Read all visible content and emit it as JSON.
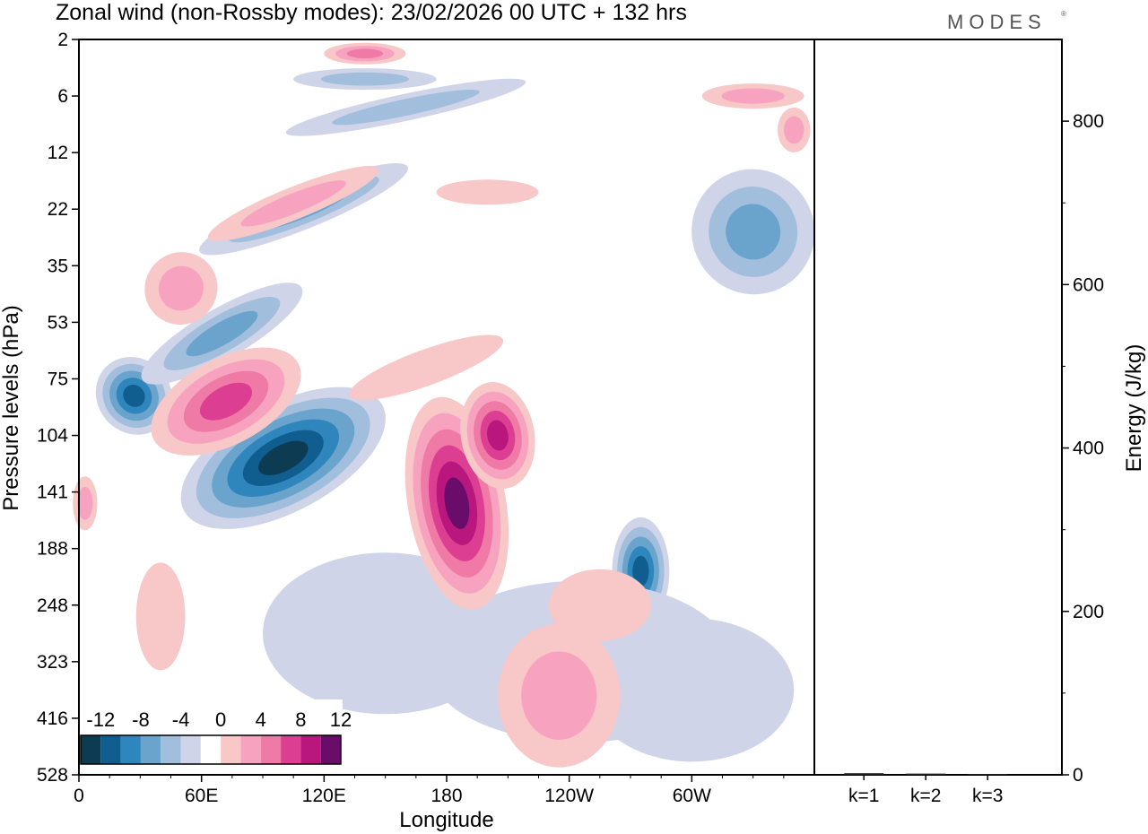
{
  "title": "Zonal wind (non-Rossby modes):  23/02/2026  00 UTC  + 132 hrs",
  "logo": "MODES",
  "chart_data": [
    {
      "type": "heatmap",
      "title": "Zonal wind (non-Rossby modes):  23/02/2026  00 UTC  + 132 hrs",
      "xlabel": "Longitude",
      "ylabel": "Pressure levels (hPa)",
      "x_ticks": [
        "0",
        "60E",
        "120E",
        "180",
        "120W",
        "60W"
      ],
      "x_tick_values": [
        0,
        60,
        120,
        180,
        240,
        300
      ],
      "xlim": [
        0,
        360
      ],
      "y_ticks": [
        "2",
        "6",
        "12",
        "22",
        "35",
        "53",
        "75",
        "104",
        "141",
        "188",
        "248",
        "323",
        "416",
        "528"
      ],
      "colorbar": {
        "labels": [
          "-12",
          "-8",
          "-4",
          "0",
          "4",
          "8",
          "12"
        ],
        "levels": [
          -14,
          -12,
          -10,
          -8,
          -6,
          -4,
          -2,
          2,
          4,
          6,
          8,
          10,
          12,
          14
        ],
        "colors": [
          "#0c3b52",
          "#0f5e8f",
          "#2f86bd",
          "#6aa3cc",
          "#a2bedd",
          "#cfd4e9",
          "#ffffff",
          "#f8c7c7",
          "#f7a3bf",
          "#f07aa6",
          "#dc3f92",
          "#b9177e",
          "#6a0d6a"
        ]
      },
      "features": [
        {
          "name": "neg-jet-core",
          "lon": 100,
          "level": "104-141",
          "value": -13
        },
        {
          "name": "neg-jet-west",
          "lon": 27,
          "level": "75-104",
          "value": -10
        },
        {
          "name": "neg-band-upper",
          "lon": 75,
          "level": "35-53",
          "value": -8
        },
        {
          "name": "pos-band-upper",
          "lon": 72,
          "level": "75",
          "value": 10
        },
        {
          "name": "pos-core-dateline",
          "lon": 185,
          "level": "104-188",
          "value": 13
        },
        {
          "name": "pos-core-east",
          "lon": 205,
          "level": "104",
          "value": 13
        },
        {
          "name": "neg-core-east",
          "lon": 275,
          "level": "188",
          "value": -8
        },
        {
          "name": "neg-upper-east",
          "lon": 345,
          "level": "22",
          "value": -8
        }
      ]
    },
    {
      "type": "bar",
      "categories": [
        "k=1",
        "k=2",
        "k=3"
      ],
      "values": [
        2,
        1.5,
        1
      ],
      "ylabel": "Energy (J/kg)",
      "ylim": [
        0,
        900
      ],
      "y_ticks": [
        "0",
        "200",
        "400",
        "600",
        "800"
      ],
      "y_tick_values": [
        0,
        200,
        400,
        600,
        800
      ]
    }
  ]
}
